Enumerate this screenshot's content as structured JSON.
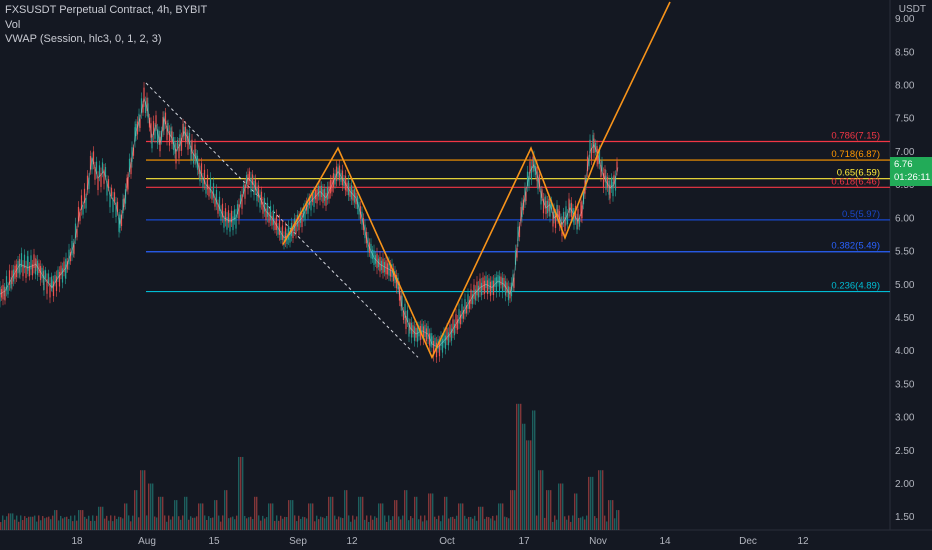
{
  "header": {
    "symbol_line": "FXSUSDT Perpetual Contract, 4h, BYBIT",
    "vol_label": "Vol",
    "vwap_label": "VWAP (Session, hlc3, 0, 1, 2, 3)"
  },
  "axis_unit": "USDT",
  "last_price": {
    "value": "6.76",
    "countdown": "01:26:11",
    "color": "#22ab58"
  },
  "colors": {
    "background": "#141822",
    "bull": "#26a69a",
    "bear": "#ef5350",
    "pattern": "#f7931a",
    "trendline": "#d1d4dc"
  },
  "chart_data": {
    "type": "line",
    "title": "FXSUSDT Perpetual Contract, 4h, BYBIT",
    "xlabel": "",
    "ylabel": "USDT",
    "ylim": [
      1.3,
      9.25
    ],
    "grid": false,
    "x_ticks": [
      "18",
      "Aug",
      "15",
      "Sep",
      "12",
      "Oct",
      "17",
      "Nov",
      "14",
      "Dec",
      "12"
    ],
    "y_ticks": [
      "1.50",
      "2.00",
      "2.50",
      "3.00",
      "3.50",
      "4.00",
      "4.50",
      "5.00",
      "5.50",
      "6.00",
      "6.50",
      "7.00",
      "7.50",
      "8.00",
      "8.50",
      "9.00"
    ],
    "price_series": {
      "name": "FXSUSDT",
      "points": [
        [
          0,
          4.85
        ],
        [
          5,
          4.9
        ],
        [
          12,
          5.1
        ],
        [
          20,
          5.3
        ],
        [
          28,
          5.25
        ],
        [
          36,
          5.3
        ],
        [
          44,
          5.1
        ],
        [
          52,
          4.95
        ],
        [
          58,
          5.1
        ],
        [
          66,
          5.25
        ],
        [
          74,
          5.6
        ],
        [
          80,
          6.1
        ],
        [
          86,
          6.3
        ],
        [
          92,
          6.9
        ],
        [
          98,
          6.6
        ],
        [
          104,
          6.7
        ],
        [
          110,
          6.35
        ],
        [
          116,
          6.2
        ],
        [
          120,
          5.9
        ],
        [
          124,
          6.2
        ],
        [
          128,
          6.6
        ],
        [
          132,
          6.9
        ],
        [
          136,
          7.3
        ],
        [
          140,
          7.5
        ],
        [
          144,
          7.8
        ],
        [
          148,
          7.6
        ],
        [
          152,
          7.2
        ],
        [
          156,
          7.4
        ],
        [
          160,
          7.1
        ],
        [
          164,
          7.5
        ],
        [
          168,
          7.3
        ],
        [
          172,
          7.2
        ],
        [
          176,
          7.0
        ],
        [
          180,
          7.1
        ],
        [
          184,
          7.3
        ],
        [
          188,
          7.2
        ],
        [
          192,
          7.0
        ],
        [
          196,
          6.9
        ],
        [
          200,
          6.7
        ],
        [
          206,
          6.5
        ],
        [
          212,
          6.4
        ],
        [
          218,
          6.2
        ],
        [
          224,
          6.0
        ],
        [
          230,
          5.95
        ],
        [
          236,
          6.0
        ],
        [
          242,
          6.3
        ],
        [
          248,
          6.6
        ],
        [
          254,
          6.5
        ],
        [
          260,
          6.3
        ],
        [
          266,
          6.1
        ],
        [
          272,
          6.0
        ],
        [
          278,
          5.85
        ],
        [
          284,
          5.7
        ],
        [
          290,
          5.75
        ],
        [
          296,
          5.9
        ],
        [
          302,
          6.0
        ],
        [
          308,
          6.2
        ],
        [
          314,
          6.3
        ],
        [
          320,
          6.4
        ],
        [
          326,
          6.3
        ],
        [
          332,
          6.5
        ],
        [
          338,
          6.7
        ],
        [
          344,
          6.55
        ],
        [
          350,
          6.4
        ],
        [
          356,
          6.3
        ],
        [
          362,
          6.0
        ],
        [
          368,
          5.6
        ],
        [
          374,
          5.4
        ],
        [
          380,
          5.3
        ],
        [
          386,
          5.25
        ],
        [
          392,
          5.2
        ],
        [
          398,
          5.0
        ],
        [
          402,
          4.65
        ],
        [
          406,
          4.5
        ],
        [
          410,
          4.35
        ],
        [
          416,
          4.25
        ],
        [
          422,
          4.3
        ],
        [
          428,
          4.25
        ],
        [
          432,
          4.1
        ],
        [
          438,
          4.05
        ],
        [
          444,
          4.15
        ],
        [
          450,
          4.25
        ],
        [
          456,
          4.4
        ],
        [
          462,
          4.55
        ],
        [
          468,
          4.7
        ],
        [
          474,
          4.85
        ],
        [
          480,
          4.95
        ],
        [
          486,
          5.0
        ],
        [
          492,
          4.95
        ],
        [
          498,
          5.05
        ],
        [
          504,
          5.0
        ],
        [
          510,
          4.85
        ],
        [
          514,
          5.1
        ],
        [
          518,
          5.7
        ],
        [
          522,
          6.1
        ],
        [
          526,
          6.4
        ],
        [
          530,
          6.7
        ],
        [
          534,
          6.8
        ],
        [
          538,
          6.6
        ],
        [
          542,
          6.3
        ],
        [
          546,
          6.15
        ],
        [
          550,
          6.2
        ],
        [
          554,
          6.0
        ],
        [
          558,
          6.05
        ],
        [
          562,
          5.9
        ],
        [
          566,
          6.0
        ],
        [
          570,
          6.15
        ],
        [
          574,
          6.05
        ],
        [
          578,
          5.95
        ],
        [
          582,
          6.1
        ],
        [
          586,
          6.6
        ],
        [
          590,
          7.0
        ],
        [
          594,
          7.1
        ],
        [
          598,
          6.95
        ],
        [
          602,
          6.7
        ],
        [
          606,
          6.55
        ],
        [
          610,
          6.45
        ],
        [
          614,
          6.5
        ],
        [
          618,
          6.76
        ]
      ]
    },
    "fib_levels": [
      {
        "ratio": "0.786",
        "price": 7.15,
        "label": "0.786(7.15)",
        "color": "#f23645"
      },
      {
        "ratio": "0.718",
        "price": 6.87,
        "label": "0.718(6.87)",
        "color": "#ff9800"
      },
      {
        "ratio": "0.65",
        "price": 6.59,
        "label": "0.65(6.59)",
        "color": "#ffeb3b"
      },
      {
        "ratio": "0.618",
        "price": 6.46,
        "label": "0.618(6.46)",
        "color": "#f23645"
      },
      {
        "ratio": "0.5",
        "price": 5.97,
        "label": "0.5(5.97)",
        "color": "#1848cc"
      },
      {
        "ratio": "0.382",
        "price": 5.49,
        "label": "0.382(5.49)",
        "color": "#2962ff"
      },
      {
        "ratio": "0.236",
        "price": 4.89,
        "label": "0.236(4.89)",
        "color": "#00bcd4"
      }
    ],
    "pattern_line": {
      "points": [
        [
          283,
          5.6
        ],
        [
          338,
          7.05
        ],
        [
          432,
          3.9
        ],
        [
          531,
          7.05
        ],
        [
          565,
          5.7
        ],
        [
          600,
          7.05
        ],
        [
          670,
          9.25
        ]
      ]
    },
    "trend_line": {
      "points": [
        [
          146,
          8.03
        ],
        [
          418,
          3.9
        ]
      ]
    },
    "volume": {
      "name": "Vol",
      "bars": [
        [
          10,
          0.25
        ],
        [
          30,
          0.2
        ],
        [
          55,
          0.3
        ],
        [
          80,
          0.3
        ],
        [
          100,
          0.35
        ],
        [
          125,
          0.4
        ],
        [
          135,
          0.6
        ],
        [
          142,
          0.9
        ],
        [
          150,
          0.7
        ],
        [
          160,
          0.5
        ],
        [
          175,
          0.45
        ],
        [
          185,
          0.5
        ],
        [
          200,
          0.4
        ],
        [
          215,
          0.45
        ],
        [
          225,
          0.6
        ],
        [
          240,
          1.1
        ],
        [
          255,
          0.5
        ],
        [
          270,
          0.4
        ],
        [
          290,
          0.45
        ],
        [
          310,
          0.4
        ],
        [
          330,
          0.5
        ],
        [
          345,
          0.6
        ],
        [
          360,
          0.5
        ],
        [
          380,
          0.4
        ],
        [
          395,
          0.45
        ],
        [
          405,
          0.6
        ],
        [
          415,
          0.5
        ],
        [
          430,
          0.55
        ],
        [
          445,
          0.5
        ],
        [
          460,
          0.4
        ],
        [
          480,
          0.35
        ],
        [
          500,
          0.4
        ],
        [
          512,
          0.6
        ],
        [
          518,
          1.9
        ],
        [
          522,
          1.6
        ],
        [
          528,
          1.35
        ],
        [
          533,
          1.8
        ],
        [
          540,
          0.9
        ],
        [
          548,
          0.6
        ],
        [
          560,
          0.7
        ],
        [
          575,
          0.55
        ],
        [
          590,
          0.8
        ],
        [
          600,
          0.9
        ],
        [
          610,
          0.45
        ],
        [
          617,
          0.3
        ]
      ]
    }
  }
}
